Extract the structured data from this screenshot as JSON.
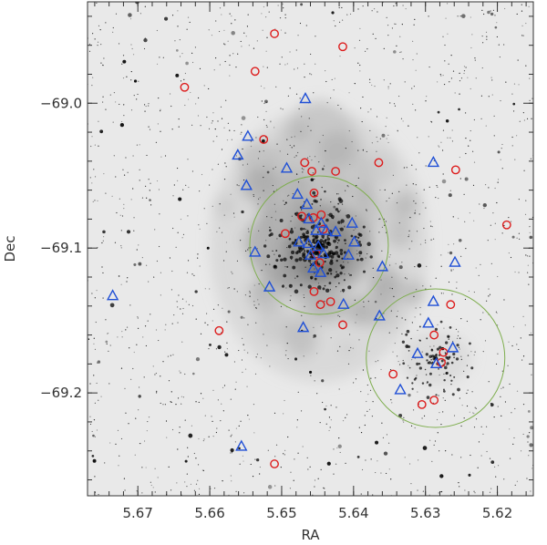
{
  "chart_data": {
    "type": "scatter",
    "title": "",
    "xlabel": "RA",
    "ylabel": "Dec",
    "xlim": [
      5.677,
      5.615
    ],
    "ylim": [
      -69.271,
      -68.93
    ],
    "x_ticks": [
      5.67,
      5.66,
      5.65,
      5.64,
      5.63,
      5.62
    ],
    "x_tick_labels": [
      "5.67",
      "5.66",
      "5.65",
      "5.64",
      "5.63",
      "5.62"
    ],
    "y_ticks": [
      -69.0,
      -69.1,
      -69.2
    ],
    "y_tick_labels": [
      "−69.0",
      "−69.1",
      "−69.2"
    ],
    "background": "grayscale sky image with dark nebula near center",
    "colors": {
      "circles": "#dd1c1c",
      "triangles": "#1f4fd6",
      "regions": "#7fae4f"
    },
    "series": [
      {
        "marker": "circle",
        "points": [
          [
            5.651,
            -68.952
          ],
          [
            5.6415,
            -68.961
          ],
          [
            5.6635,
            -68.989
          ],
          [
            5.6537,
            -68.978
          ],
          [
            5.6525,
            -69.025
          ],
          [
            5.6468,
            -69.041
          ],
          [
            5.6458,
            -69.047
          ],
          [
            5.6425,
            -69.047
          ],
          [
            5.6365,
            -69.041
          ],
          [
            5.6258,
            -69.046
          ],
          [
            5.6455,
            -69.062
          ],
          [
            5.6472,
            -69.078
          ],
          [
            5.6456,
            -69.079
          ],
          [
            5.6445,
            -69.077
          ],
          [
            5.6495,
            -69.09
          ],
          [
            5.6442,
            -69.087
          ],
          [
            5.6187,
            -69.084
          ],
          [
            5.6452,
            -69.104
          ],
          [
            5.6447,
            -69.11
          ],
          [
            5.6455,
            -69.13
          ],
          [
            5.6432,
            -69.137
          ],
          [
            5.6446,
            -69.139
          ],
          [
            5.6415,
            -69.153
          ],
          [
            5.6587,
            -69.157
          ],
          [
            5.6265,
            -69.139
          ],
          [
            5.6288,
            -69.16
          ],
          [
            5.6275,
            -69.172
          ],
          [
            5.6278,
            -69.179
          ],
          [
            5.6345,
            -69.187
          ],
          [
            5.6288,
            -69.205
          ],
          [
            5.6305,
            -69.208
          ],
          [
            5.651,
            -69.249
          ]
        ]
      },
      {
        "marker": "triangle",
        "points": [
          [
            5.6467,
            -68.997
          ],
          [
            5.6547,
            -69.023
          ],
          [
            5.6561,
            -69.036
          ],
          [
            5.6493,
            -69.045
          ],
          [
            5.6289,
            -69.041
          ],
          [
            5.6549,
            -69.057
          ],
          [
            5.6478,
            -69.063
          ],
          [
            5.6465,
            -69.07
          ],
          [
            5.6462,
            -69.08
          ],
          [
            5.6445,
            -69.083
          ],
          [
            5.6452,
            -69.088
          ],
          [
            5.6438,
            -69.088
          ],
          [
            5.6425,
            -69.089
          ],
          [
            5.6463,
            -69.097
          ],
          [
            5.6476,
            -69.096
          ],
          [
            5.6449,
            -69.099
          ],
          [
            5.646,
            -69.105
          ],
          [
            5.6442,
            -69.104
          ],
          [
            5.6402,
            -69.083
          ],
          [
            5.6399,
            -69.096
          ],
          [
            5.6407,
            -69.105
          ],
          [
            5.6537,
            -69.103
          ],
          [
            5.636,
            -69.113
          ],
          [
            5.6456,
            -69.114
          ],
          [
            5.6446,
            -69.117
          ],
          [
            5.6259,
            -69.11
          ],
          [
            5.6517,
            -69.127
          ],
          [
            5.6735,
            -69.133
          ],
          [
            5.6289,
            -69.137
          ],
          [
            5.6364,
            -69.147
          ],
          [
            5.6414,
            -69.139
          ],
          [
            5.647,
            -69.155
          ],
          [
            5.6296,
            -69.152
          ],
          [
            5.6311,
            -69.173
          ],
          [
            5.6262,
            -69.169
          ],
          [
            5.6285,
            -69.18
          ],
          [
            5.6335,
            -69.198
          ],
          [
            5.6556,
            -69.237
          ]
        ]
      },
      {
        "marker": "region-circle",
        "points": [
          [
            5.6448,
            -69.098
          ],
          [
            5.6286,
            -69.176
          ]
        ]
      }
    ]
  }
}
